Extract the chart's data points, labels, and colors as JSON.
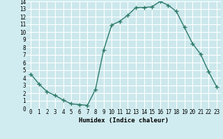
{
  "x": [
    0,
    1,
    2,
    3,
    4,
    5,
    6,
    7,
    8,
    9,
    10,
    11,
    12,
    13,
    14,
    15,
    16,
    17,
    18,
    19,
    20,
    21,
    22,
    23
  ],
  "y": [
    4.5,
    3.2,
    2.2,
    1.7,
    1.1,
    0.6,
    0.5,
    0.4,
    2.5,
    7.6,
    10.9,
    11.4,
    12.2,
    13.2,
    13.2,
    13.3,
    14.0,
    13.5,
    12.7,
    10.6,
    8.5,
    7.1,
    4.8,
    2.8
  ],
  "xlabel": "Humidex (Indice chaleur)",
  "xlim": [
    -0.5,
    23.5
  ],
  "ylim": [
    0,
    14
  ],
  "yticks": [
    0,
    1,
    2,
    3,
    4,
    5,
    6,
    7,
    8,
    9,
    10,
    11,
    12,
    13,
    14
  ],
  "xticks": [
    0,
    1,
    2,
    3,
    4,
    5,
    6,
    7,
    8,
    9,
    10,
    11,
    12,
    13,
    14,
    15,
    16,
    17,
    18,
    19,
    20,
    21,
    22,
    23
  ],
  "line_color": "#2d7a6a",
  "marker": "+",
  "bg_color": "#d0ecf0",
  "grid_color": "#ffffff",
  "axes_bg": "#cce8ec",
  "label_fontsize": 6.5,
  "tick_fontsize": 5.5,
  "markersize": 4,
  "linewidth": 1.0
}
